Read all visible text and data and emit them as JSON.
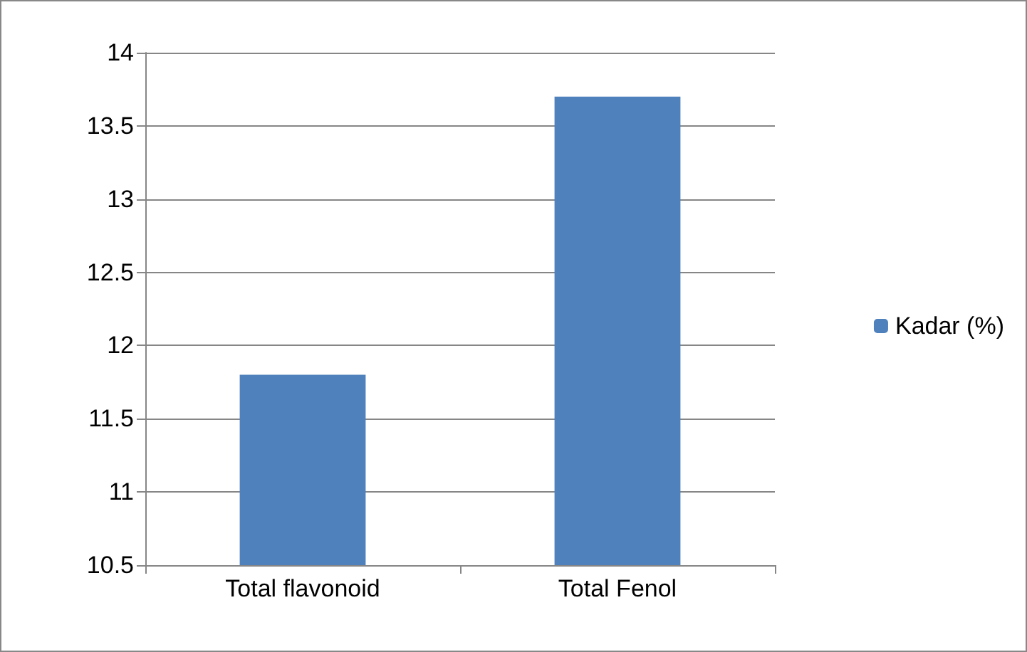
{
  "chart_data": {
    "type": "bar",
    "categories": [
      "Total flavonoid",
      "Total Fenol"
    ],
    "series": [
      {
        "name": "Kadar (%)",
        "color": "#4f81bd",
        "values": [
          11.8,
          13.7
        ]
      }
    ],
    "ylim": [
      10.5,
      14
    ],
    "yticks": [
      10.5,
      11,
      11.5,
      12,
      12.5,
      13,
      13.5,
      14
    ],
    "grid": "y",
    "legend": "right"
  }
}
